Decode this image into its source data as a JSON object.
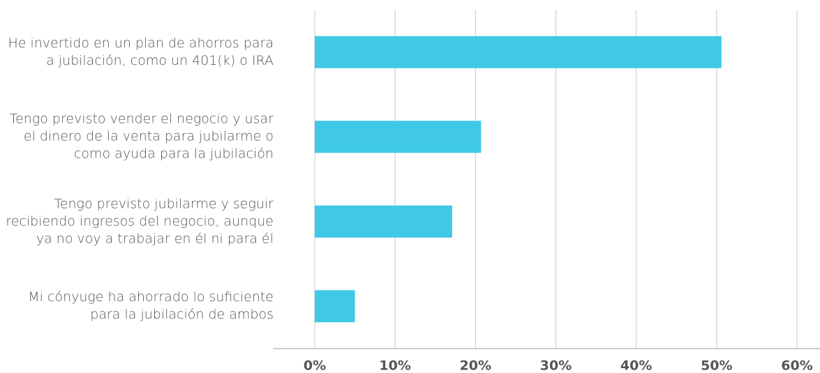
{
  "chart_data": {
    "type": "bar",
    "orientation": "horizontal",
    "categories": [
      "He invertido en un plan de ahorros para a jubilación, como un 401(k) o IRA",
      "Tengo previsto vender el negocio y usar el dinero de la venta para jubilarme o como ayuda para la jubilación",
      "Tengo previsto jubilarme y seguir recibiendo ingresos del negocio, aunque ya no voy a trabajar en él ni para él",
      "Mi cónyuge ha ahorrado lo suficiente para la jubilación de ambos"
    ],
    "values": [
      50.6,
      20.7,
      17.1,
      5.0
    ],
    "color": "#40c9e7",
    "xlim": [
      0,
      60
    ],
    "xticks": [
      {
        "value": 0,
        "label": "0%"
      },
      {
        "value": 10,
        "label": "10%"
      },
      {
        "value": 20,
        "label": "20%"
      },
      {
        "value": 30,
        "label": "30%"
      },
      {
        "value": 40,
        "label": "40%"
      },
      {
        "value": 50,
        "label": "50%"
      },
      {
        "value": 60,
        "label": "60%"
      }
    ],
    "grid": true
  }
}
